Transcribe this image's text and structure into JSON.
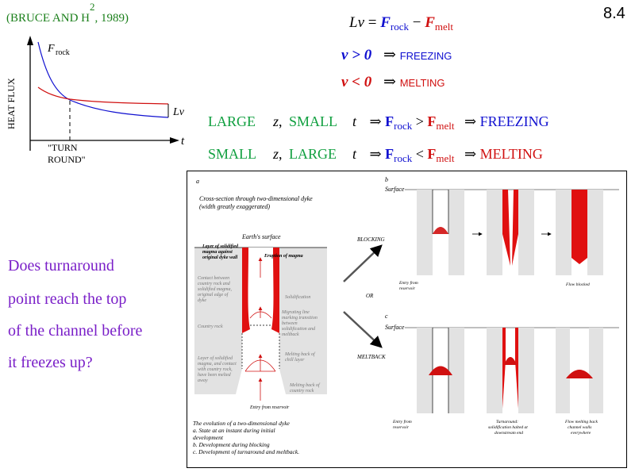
{
  "citation": {
    "text": "(BRUCE AND H",
    "sup": "2",
    "year": ", 1989)"
  },
  "slide_number": "8.4",
  "graph": {
    "ylabel": "HEAT FLUX",
    "xlabel": "t",
    "curve_label": "F",
    "curve_label_sub": "rock",
    "lv_label": "Lv",
    "turn_label_1": "\"TURN",
    "turn_label_2": "ROUND\""
  },
  "equation": {
    "lhs": "Lv",
    "eq": "=",
    "term1": "F",
    "term1_sub": "rock",
    "minus": "−",
    "term2": "F",
    "term2_sub": "melt"
  },
  "conditions": [
    {
      "lhs": "v > 0",
      "arrow": "⇒",
      "result": "FREEZING",
      "color": "#1010d0"
    },
    {
      "lhs": "v < 0",
      "arrow": "⇒",
      "result": "MELTING",
      "color": "#d01010"
    }
  ],
  "rules": [
    {
      "z_size": "LARGE",
      "z": "z",
      "t_size": "SMALL",
      "t": "t",
      "arrow1": "⇒",
      "f1": "F",
      "f1_sub": "rock",
      "op": ">",
      "f2": "F",
      "f2_sub": "melt",
      "arrow2": "⇒",
      "result": "FREEZING",
      "result_color": "#1010d0"
    },
    {
      "z_size": "SMALL",
      "z": "z",
      "t_size": "LARGE",
      "t": "t",
      "arrow1": "⇒",
      "f1": "F",
      "f1_sub": "rock",
      "op": "<",
      "f2": "F",
      "f2_sub": "melt",
      "arrow2": "⇒",
      "result": "MELTING",
      "result_color": "#d01010"
    }
  ],
  "question": [
    "Does turnaround",
    "point reach the top",
    "of the channel before",
    "it freezes up?"
  ],
  "figure": {
    "panel_a": "a",
    "panel_b": "b",
    "panel_c": "c",
    "title_1": "Cross-section through two-dimensional dyke",
    "title_2": "(width greatly exaggerated)",
    "earth_surface": "Earth's surface",
    "surface_b": "Surface",
    "surface_c": "Surface",
    "layer_1": "Layer of solidified",
    "layer_2": "magma against",
    "layer_3": "original dyke wall",
    "eruption": "Eruption of magma",
    "contact_1": "Contact between",
    "contact_2": "country rock and",
    "contact_3": "solidified magma,",
    "contact_4": "original edge of",
    "contact_5": "dyke",
    "solidification": "Solidification",
    "migrating_1": "Migrating line",
    "migrating_2": "marking transition",
    "migrating_3": "between",
    "migrating_4": "solidification and",
    "migrating_5": "meltback",
    "country_rock": "Country rock",
    "melting_chill_1": "Melting back of",
    "melting_chill_2": "chill layer",
    "layer_melt_1": "Layer of solidified",
    "layer_melt_2": "magma, and contact",
    "layer_melt_3": "with country rock,",
    "layer_melt_4": "have been melted",
    "layer_melt_5": "away",
    "melting_country_1": "Melting back of",
    "melting_country_2": "country rock",
    "entry_a": "Entry from reservoir",
    "blocking": "BLOCKING",
    "or": "OR",
    "meltback": "MELTBACK",
    "entry_b_1": "Entry from",
    "entry_b_2": "reservoir",
    "flow_blocked": "Flow blocked",
    "entry_c_1": "Entry from",
    "entry_c_2": "reservoir",
    "turn_c_1": "Turnaround:",
    "turn_c_2": "solidification halted at",
    "turn_c_3": "downstream end",
    "flow_melt_1": "Flow melting back",
    "flow_melt_2": "channel walls",
    "flow_melt_3": "everywhere",
    "caption": [
      "The evolution of a two-dimensional dyke",
      "a. State at an instant during initial",
      "development",
      "b. Development during blocking",
      "c. Development of turnaround and meltback."
    ]
  }
}
